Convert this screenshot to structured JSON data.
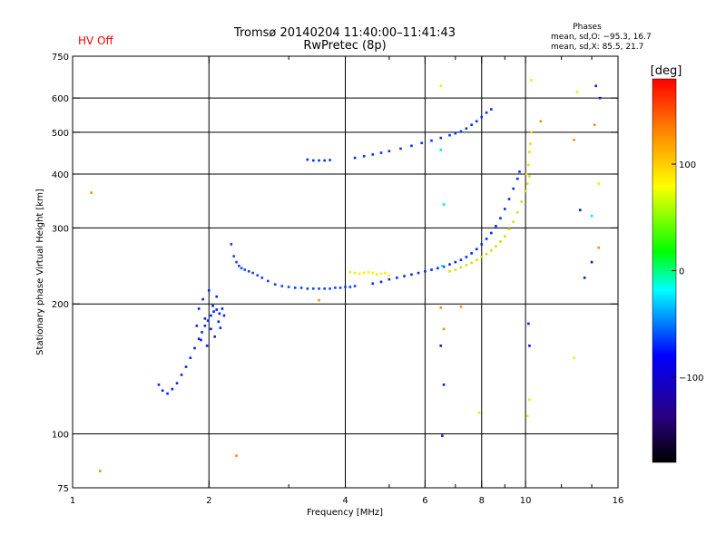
{
  "status": {
    "text": "HV Off",
    "color": "#ff0000"
  },
  "chart_data": {
    "type": "scatter",
    "title": "Tromsø 20140204 11:40:00–11:41:43",
    "subtitle": "RwPretec (8p)",
    "xlabel": "Frequency [MHz]",
    "ylabel": "Stationary phase Virtual Height [km]",
    "x_scale": "log",
    "y_scale": "log",
    "xlim": [
      1,
      16
    ],
    "ylim": [
      75,
      750
    ],
    "x_ticks": [
      1,
      2,
      4,
      6,
      8,
      10,
      16
    ],
    "x_tick_labels": [
      "1",
      "2",
      "4",
      "6",
      "8",
      "10",
      "16"
    ],
    "x_minor_ticks": [
      3,
      5,
      7,
      9,
      12,
      14
    ],
    "y_ticks": [
      75,
      100,
      200,
      300,
      400,
      500,
      600,
      750
    ],
    "y_tick_labels": [
      "75",
      "100",
      "200",
      "300",
      "400",
      "500",
      "600",
      "750"
    ],
    "x_gridlines": [
      2,
      4,
      6,
      8,
      10
    ],
    "y_gridlines": [
      100,
      200,
      300,
      400,
      500,
      600
    ],
    "grid": true,
    "stats": {
      "heading": "Phases",
      "line1": "mean, sd,O: −95.3, 16.7",
      "line2": "mean, sd,X:  85.5, 21.7"
    },
    "colorbar": {
      "label": "[deg]",
      "range": [
        -180,
        180
      ],
      "ticks": [
        100,
        0,
        -100
      ],
      "tick_labels": [
        "100",
        "0",
        "−100"
      ],
      "colors": [
        "#ff0000",
        "#ff8800",
        "#ffff00",
        "#00ff00",
        "#00ffff",
        "#0000ff",
        "#000000"
      ]
    },
    "series": [
      {
        "color": "#0020ff",
        "x": [
          1.55,
          1.58,
          1.62,
          1.66,
          1.7,
          1.74,
          1.78,
          1.82,
          1.86,
          1.9,
          1.93,
          1.96,
          1.99,
          2.02,
          2.05,
          2.08,
          2.11
        ],
        "y": [
          130,
          126,
          124,
          127,
          131,
          137,
          143,
          150,
          158,
          166,
          172,
          178,
          183,
          188,
          192,
          194,
          190
        ]
      },
      {
        "color": "#0020ff",
        "x": [
          1.88,
          1.9,
          1.92,
          1.94,
          1.96,
          1.98,
          2.0,
          2.02,
          2.04,
          2.06,
          2.08,
          2.1,
          2.12,
          2.14,
          2.16
        ],
        "y": [
          178,
          195,
          165,
          205,
          185,
          160,
          215,
          175,
          198,
          168,
          208,
          182,
          176,
          195,
          188
        ]
      },
      {
        "color": "#1040ff",
        "x": [
          2.24,
          2.27,
          2.3,
          2.33,
          2.36,
          2.4,
          2.45,
          2.5,
          2.56,
          2.62,
          2.7,
          2.8,
          2.9,
          3.0,
          3.1,
          3.2,
          3.3,
          3.4,
          3.5,
          3.6,
          3.7,
          3.8,
          3.9,
          4.0,
          4.1,
          4.2
        ],
        "y": [
          275,
          258,
          250,
          245,
          242,
          240,
          238,
          236,
          233,
          230,
          226,
          222,
          220,
          219,
          218,
          218,
          217,
          217,
          217,
          217,
          217,
          218,
          218,
          219,
          219,
          220
        ]
      },
      {
        "color": "#ffee00",
        "x": [
          4.1,
          4.2,
          4.3,
          4.4,
          4.5,
          4.6,
          4.7,
          4.8,
          4.9,
          5.0
        ],
        "y": [
          237,
          236,
          235,
          236,
          237,
          236,
          234,
          235,
          236,
          233
        ]
      },
      {
        "color": "#0028ff",
        "x": [
          4.6,
          4.8,
          5.0,
          5.2,
          5.4,
          5.6,
          5.8,
          6.0,
          6.2,
          6.4,
          6.6,
          6.8,
          7.0,
          7.2,
          7.4,
          7.6,
          7.8,
          8.0,
          8.2,
          8.4,
          8.6,
          8.8,
          9.0,
          9.2,
          9.4,
          9.6,
          9.7
        ],
        "y": [
          223,
          225,
          228,
          230,
          232,
          234,
          236,
          238,
          240,
          242,
          244,
          247,
          250,
          253,
          257,
          262,
          268,
          275,
          283,
          292,
          303,
          316,
          332,
          350,
          370,
          390,
          405
        ]
      },
      {
        "color": "#c8e600",
        "x": [
          6.8,
          7.0,
          7.2,
          7.4,
          7.6,
          7.8,
          8.0,
          8.2,
          8.4,
          8.6,
          8.8,
          9.0,
          9.2,
          9.4,
          9.6,
          9.8,
          10.0,
          10.2
        ],
        "y": [
          238,
          240,
          243,
          246,
          249,
          253,
          257,
          261,
          266,
          272,
          279,
          287,
          298,
          310,
          326,
          345,
          365,
          395
        ]
      },
      {
        "color": "#0030ff",
        "x": [
          3.3,
          3.4,
          3.5,
          3.6,
          3.7
        ],
        "y": [
          432,
          430,
          430,
          430,
          431
        ]
      },
      {
        "color": "#0030ff",
        "x": [
          4.2,
          4.4,
          4.6,
          4.8,
          5.0,
          5.3,
          5.6,
          5.9,
          6.2,
          6.5,
          6.8,
          7.0,
          7.2,
          7.4,
          7.6,
          7.8,
          8.0,
          8.2,
          8.4
        ],
        "y": [
          436,
          440,
          444,
          448,
          452,
          458,
          465,
          472,
          478,
          485,
          492,
          497,
          502,
          510,
          520,
          530,
          542,
          555,
          565
        ]
      },
      {
        "color": "#ffd200",
        "x": [
          10.05,
          10.1,
          10.15,
          10.2,
          10.25,
          10.3
        ],
        "y": [
          400,
          380,
          420,
          450,
          470,
          500
        ]
      },
      {
        "color": "#ff8a00",
        "x": [
          1.1,
          1.15,
          2.3,
          3.5,
          6.5,
          6.6,
          7.2,
          10.8,
          12.8,
          14.2,
          14.5
        ],
        "y": [
          362,
          82,
          89,
          204,
          196,
          175,
          197,
          530,
          480,
          520,
          270
        ]
      },
      {
        "color": "#00e6ff",
        "x": [
          6.6,
          6.5,
          6.55,
          14.0
        ],
        "y": [
          340,
          455,
          245,
          320
        ]
      },
      {
        "color": "#0018e0",
        "x": [
          6.55,
          6.6,
          6.5,
          10.15,
          10.2,
          13.2,
          13.5,
          14.0,
          14.6,
          14.3
        ],
        "y": [
          99,
          130,
          160,
          180,
          160,
          330,
          230,
          250,
          600,
          640
        ]
      },
      {
        "color": "#c8ff00",
        "x": [
          6.5,
          7.9,
          10.1,
          10.2,
          10.3,
          12.8,
          13.0,
          14.5
        ],
        "y": [
          640,
          112,
          110,
          120,
          660,
          150,
          620,
          380
        ]
      }
    ]
  }
}
